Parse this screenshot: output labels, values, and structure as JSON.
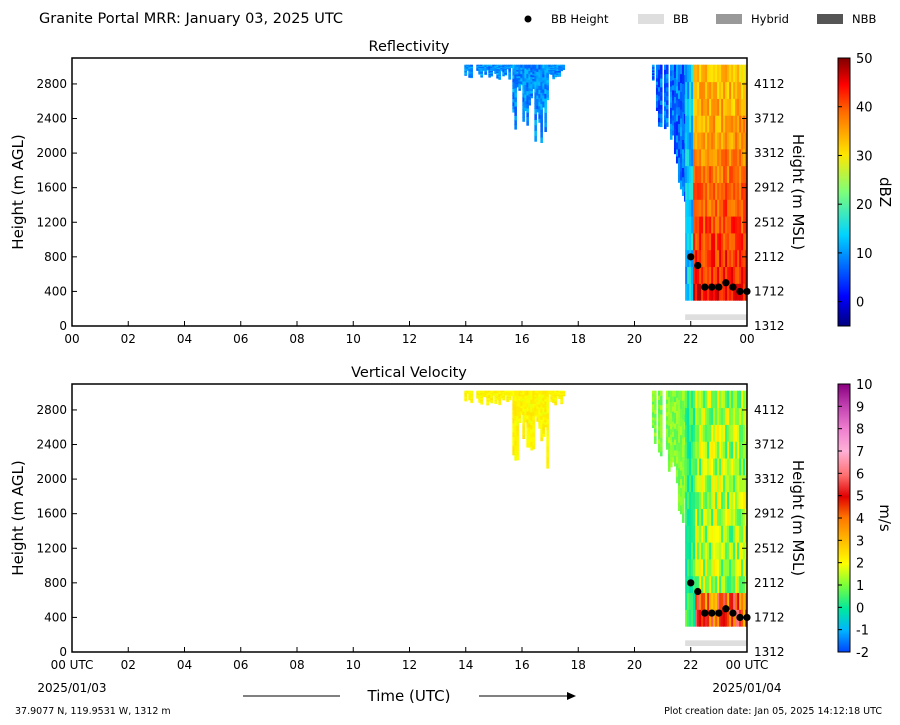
{
  "header": {
    "title": "Granite Portal MRR:  January 03, 2025 UTC",
    "legend": [
      {
        "label": "BB Height",
        "kind": "dot",
        "color": "#000000"
      },
      {
        "label": "BB",
        "kind": "rect",
        "color": "#dedede"
      },
      {
        "label": "Hybrid",
        "kind": "rect",
        "color": "#999999"
      },
      {
        "label": "NBB",
        "kind": "rect",
        "color": "#555555"
      }
    ]
  },
  "footer": {
    "xlabel": "Time (UTC)",
    "start_date": "2025/01/03",
    "end_date": "2025/01/04",
    "location": "37.9077 N, 119.9531 W, 1312 m",
    "creation": "Plot creation date: Jan 05, 2025 14:12:18 UTC"
  },
  "chart_data": [
    {
      "type": "heatmap",
      "title": "Reflectivity",
      "ylabel": "Height (m AGL)",
      "ylabel_right": "Height (m MSL)",
      "xlim": [
        0,
        24
      ],
      "ylim": [
        0,
        3100
      ],
      "x_ticks": [
        "00",
        "02",
        "04",
        "06",
        "08",
        "10",
        "12",
        "14",
        "16",
        "18",
        "20",
        "22",
        "00"
      ],
      "y_ticks": [
        0,
        400,
        800,
        1200,
        1600,
        2000,
        2400,
        2800
      ],
      "y_ticks_right": [
        1312,
        1712,
        2112,
        2512,
        2912,
        3312,
        3712,
        4112
      ],
      "colorbar": {
        "label": "dBZ",
        "min": -5,
        "max": 50,
        "ticks": [
          0,
          10,
          20,
          30,
          40,
          50
        ]
      },
      "bb_height": [
        [
          22.0,
          800
        ],
        [
          22.25,
          700
        ],
        [
          22.5,
          450
        ],
        [
          22.75,
          450
        ],
        [
          23.0,
          450
        ],
        [
          23.25,
          500
        ],
        [
          23.5,
          450
        ],
        [
          23.75,
          400
        ],
        [
          24.0,
          400
        ]
      ],
      "bb_band": [
        21.8,
        24.0
      ]
    },
    {
      "type": "heatmap",
      "title": "Vertical Velocity",
      "ylabel": "Height (m AGL)",
      "ylabel_right": "Height (m MSL)",
      "xlim": [
        0,
        24
      ],
      "ylim": [
        0,
        3100
      ],
      "x_ticks": [
        "00 UTC",
        "02",
        "04",
        "06",
        "08",
        "10",
        "12",
        "14",
        "16",
        "18",
        "20",
        "22",
        "00 UTC"
      ],
      "y_ticks": [
        0,
        400,
        800,
        1200,
        1600,
        2000,
        2400,
        2800
      ],
      "y_ticks_right": [
        1312,
        1712,
        2112,
        2512,
        2912,
        3312,
        3712,
        4112
      ],
      "colorbar": {
        "label": "m/s",
        "min": -2,
        "max": 10,
        "ticks": [
          -2,
          -1,
          0,
          1,
          2,
          3,
          4,
          5,
          6,
          7,
          8,
          9,
          10
        ]
      },
      "bb_height": [
        [
          22.0,
          800
        ],
        [
          22.25,
          700
        ],
        [
          22.5,
          450
        ],
        [
          22.75,
          450
        ],
        [
          23.0,
          450
        ],
        [
          23.25,
          500
        ],
        [
          23.5,
          450
        ],
        [
          23.75,
          400
        ],
        [
          24.0,
          400
        ]
      ],
      "bb_band": [
        21.8,
        24.0
      ]
    }
  ]
}
